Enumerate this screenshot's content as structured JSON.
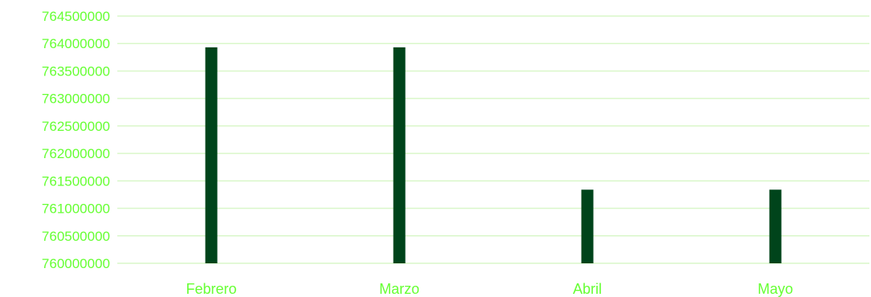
{
  "chart_data": {
    "type": "bar",
    "categories": [
      "Febrero",
      "Marzo",
      "Abril",
      "Mayo"
    ],
    "values": [
      763930000,
      763930000,
      761340000,
      761340000
    ],
    "ylim": [
      760000000,
      764500000
    ],
    "y_ticks": [
      "760000000",
      "760500000",
      "761000000",
      "761500000",
      "762000000",
      "762500000",
      "763000000",
      "763500000",
      "764000000",
      "764500000"
    ],
    "grid": true,
    "legend": "none"
  },
  "colors": {
    "bar": "#00441b",
    "grid": "#d9f7c9",
    "label": "#66ff33"
  }
}
